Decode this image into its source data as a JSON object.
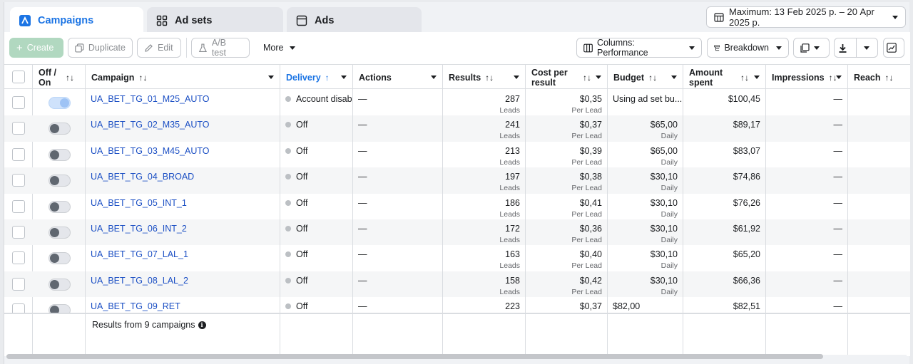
{
  "tabs": [
    {
      "label": "Campaigns",
      "icon": "campaign-icon",
      "active": true
    },
    {
      "label": "Ad sets",
      "icon": "grid-icon"
    },
    {
      "label": "Ads",
      "icon": "ad-icon"
    }
  ],
  "date_range": "Maximum: 13 Feb 2025 р. – 20 Apr 2025 р.",
  "toolbar": {
    "create": "Create",
    "duplicate": "Duplicate",
    "edit": "Edit",
    "ab_test": "A/B test",
    "more": "More",
    "columns": "Columns: Performance",
    "breakdown": "Breakdown"
  },
  "columns": {
    "off_on": "Off / On",
    "campaign": "Campaign",
    "delivery": "Delivery",
    "actions": "Actions",
    "results": "Results",
    "cost_per_result": "Cost per result",
    "budget": "Budget",
    "amount_spent": "Amount spent",
    "impressions": "Impressions",
    "reach": "Reach"
  },
  "sort_glyph": "↑↓",
  "sort_up_glyph": "↑",
  "rows": [
    {
      "on": true,
      "name": "UA_BET_TG_01_M25_AUTO",
      "delivery": "Account disab",
      "actions": "—",
      "results": "287",
      "results_sub": "Leads",
      "cpr": "$0,35",
      "cpr_sub": "Per Lead",
      "budget": "Using ad set bu...",
      "budget_sub": "",
      "spent": "$100,45",
      "impressions": "—"
    },
    {
      "on": false,
      "name": "UA_BET_TG_02_M35_AUTO",
      "delivery": "Off",
      "actions": "—",
      "results": "241",
      "results_sub": "Leads",
      "cpr": "$0,37",
      "cpr_sub": "Per Lead",
      "budget": "$65,00",
      "budget_sub": "Daily",
      "spent": "$89,17",
      "impressions": "—"
    },
    {
      "on": false,
      "name": "UA_BET_TG_03_M45_AUTO",
      "delivery": "Off",
      "actions": "—",
      "results": "213",
      "results_sub": "Leads",
      "cpr": "$0,39",
      "cpr_sub": "Per Lead",
      "budget": "$65,00",
      "budget_sub": "Daily",
      "spent": "$83,07",
      "impressions": "—"
    },
    {
      "on": false,
      "name": "UA_BET_TG_04_BROAD",
      "delivery": "Off",
      "actions": "—",
      "results": "197",
      "results_sub": "Leads",
      "cpr": "$0,38",
      "cpr_sub": "Per Lead",
      "budget": "$30,10",
      "budget_sub": "Daily",
      "spent": "$74,86",
      "impressions": "—"
    },
    {
      "on": false,
      "name": "UA_BET_TG_05_INT_1",
      "delivery": "Off",
      "actions": "—",
      "results": "186",
      "results_sub": "Leads",
      "cpr": "$0,41",
      "cpr_sub": "Per Lead",
      "budget": "$30,10",
      "budget_sub": "Daily",
      "spent": "$76,26",
      "impressions": "—"
    },
    {
      "on": false,
      "name": "UA_BET_TG_06_INT_2",
      "delivery": "Off",
      "actions": "—",
      "results": "172",
      "results_sub": "Leads",
      "cpr": "$0,36",
      "cpr_sub": "Per Lead",
      "budget": "$30,10",
      "budget_sub": "Daily",
      "spent": "$61,92",
      "impressions": "—"
    },
    {
      "on": false,
      "name": "UA_BET_TG_07_LAL_1",
      "delivery": "Off",
      "actions": "—",
      "results": "163",
      "results_sub": "Leads",
      "cpr": "$0,40",
      "cpr_sub": "Per Lead",
      "budget": "$30,10",
      "budget_sub": "Daily",
      "spent": "$65,20",
      "impressions": "—"
    },
    {
      "on": false,
      "name": "UA_BET_TG_08_LAL_2",
      "delivery": "Off",
      "actions": "—",
      "results": "158",
      "results_sub": "Leads",
      "cpr": "$0,42",
      "cpr_sub": "Per Lead",
      "budget": "$30,10",
      "budget_sub": "Daily",
      "spent": "$66,36",
      "impressions": "—"
    },
    {
      "on": false,
      "name": "UA_BET_TG_09_RET",
      "delivery": "Off",
      "actions": "—",
      "results": "223",
      "results_sub": "",
      "cpr": "$0,37",
      "cpr_sub": "",
      "budget": "$82,00",
      "budget_sub": "",
      "spent": "$82,51",
      "impressions": "—"
    }
  ],
  "footer": {
    "text": "Results from 9 campaigns",
    "info_glyph": "i"
  },
  "colors": {
    "accent": "#1b74e4",
    "link": "#1b4fc4",
    "create_disabled": "#b1d8c0"
  }
}
